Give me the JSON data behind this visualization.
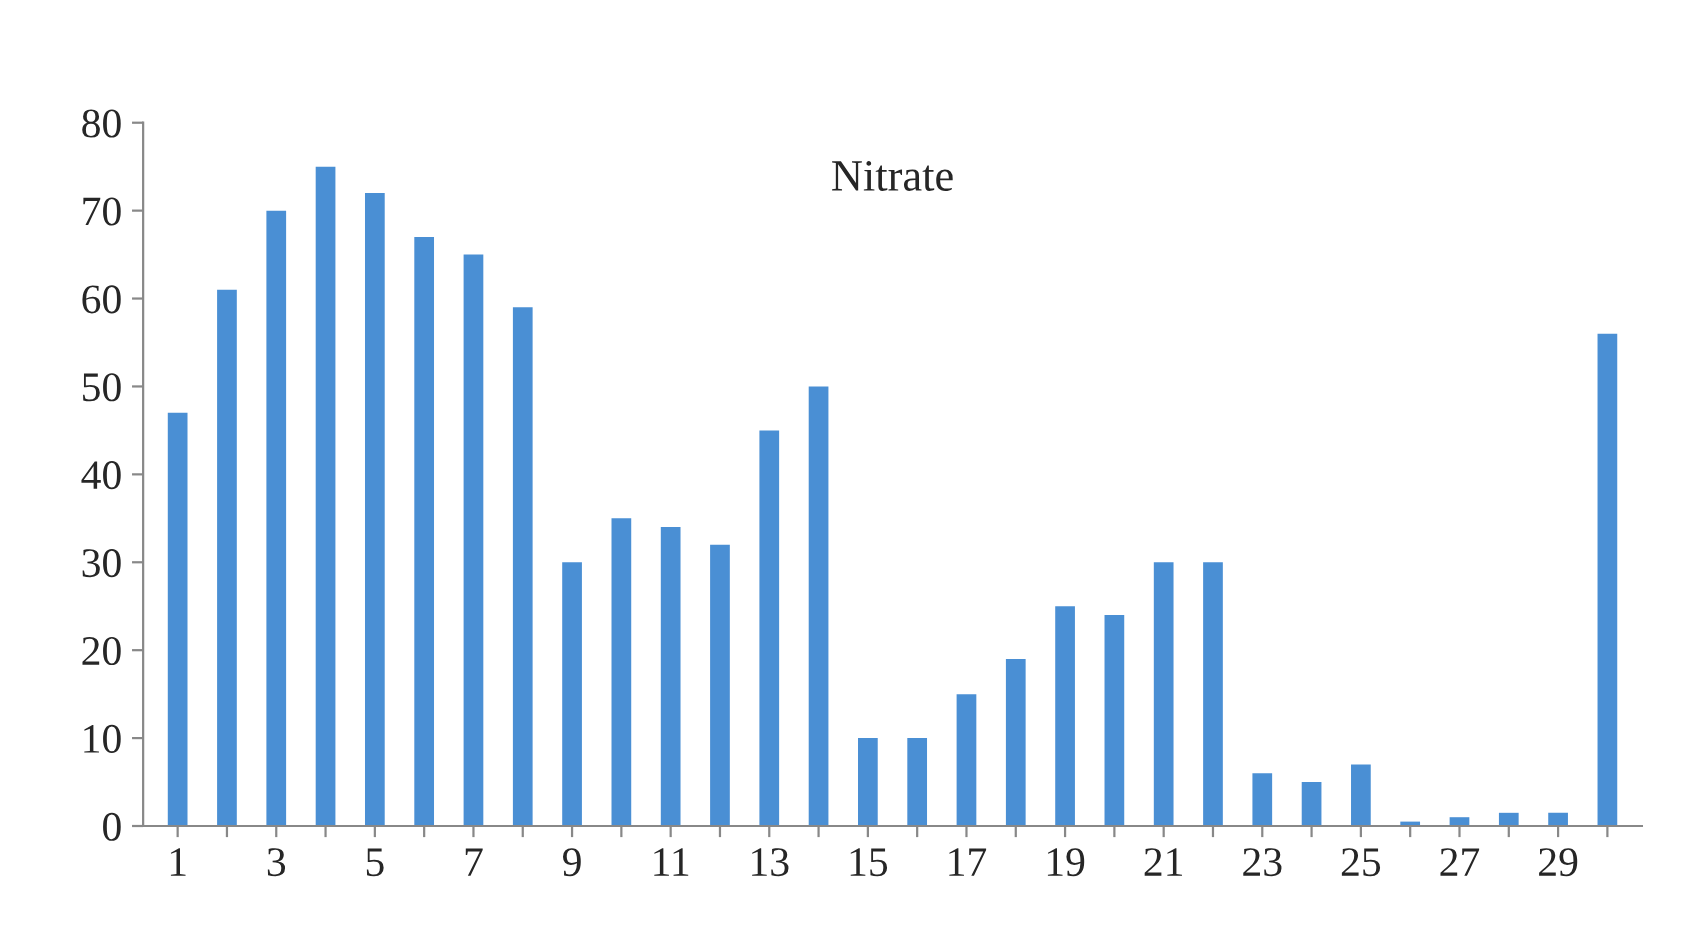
{
  "chart_data": {
    "type": "bar",
    "title": "Nitrate",
    "categories": [
      "1",
      null,
      "3",
      null,
      "5",
      null,
      "7",
      null,
      "9",
      null,
      "11",
      null,
      "13",
      null,
      "15",
      null,
      "17",
      null,
      "19",
      null,
      "21",
      null,
      "23",
      null,
      "25",
      null,
      "27",
      null,
      "29",
      null
    ],
    "values": [
      47,
      61,
      70,
      75,
      72,
      67,
      65,
      59,
      30,
      35,
      34,
      32,
      45,
      50,
      10,
      10,
      15,
      19,
      25,
      24,
      30,
      30,
      6,
      5,
      7,
      0.5,
      1,
      1.5,
      1.5,
      56
    ],
    "color": "#4a8fd4",
    "ylim": [
      0,
      80
    ],
    "yticks": [
      0,
      10,
      20,
      30,
      40,
      50,
      60,
      70,
      80
    ],
    "grid": false,
    "legend": false
  }
}
